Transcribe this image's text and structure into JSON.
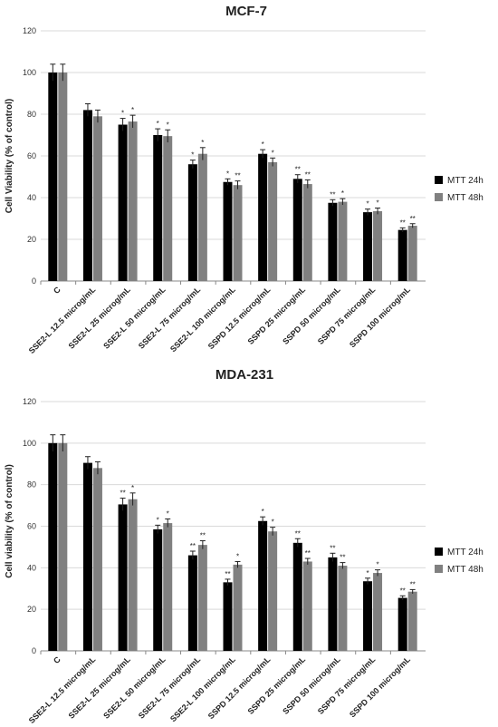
{
  "chart_data": [
    {
      "type": "bar",
      "title": "MCF-7",
      "ylabel": "Cell Viability (% of control)",
      "ylim": [
        0,
        120
      ],
      "yticks": [
        0,
        20,
        40,
        60,
        80,
        100,
        120
      ],
      "grid": true,
      "legend_position": "right",
      "categories": [
        "C",
        "SSE2-L 12.5 microg/mL",
        "SSE2-L 25 microg/mL",
        "SSE2-L 50 microg/mL",
        "SSE2-L 75 microg/mL",
        "SSE2-L 100 microg/mL",
        "SSPD 12.5 microg/mL",
        "SSPD 25 microg/mL",
        "SSPD 50 microg/mL",
        "SSPD 75 microg/mL",
        "SSPD 100 microg/mL"
      ],
      "series": [
        {
          "name": "MTT 24h",
          "color": "#000000",
          "values": [
            100,
            82,
            75,
            70,
            56,
            47.5,
            61,
            49,
            37.5,
            33,
            24.5
          ],
          "errors": [
            4,
            3,
            3,
            3,
            2,
            1.5,
            2,
            2,
            1.5,
            1.5,
            1
          ],
          "significance": [
            "",
            "",
            "*",
            "*",
            "*",
            "*",
            "*",
            "**",
            "**",
            "*",
            "**"
          ]
        },
        {
          "name": "MTT 48h",
          "color": "#808080",
          "values": [
            100,
            79,
            76.5,
            69.5,
            61,
            46,
            57,
            46.5,
            38,
            33.5,
            26.5
          ],
          "errors": [
            4,
            3,
            3,
            3,
            3,
            2,
            2,
            2,
            1.5,
            1.5,
            1
          ],
          "significance": [
            "",
            "",
            "*",
            "*",
            "*",
            "**",
            "*",
            "**",
            "*",
            "*",
            "**"
          ]
        }
      ]
    },
    {
      "type": "bar",
      "title": "MDA-231",
      "ylabel": "Cell viability (% of control)",
      "ylim": [
        0,
        120
      ],
      "yticks": [
        0,
        20,
        40,
        60,
        80,
        100,
        120
      ],
      "grid": true,
      "legend_position": "right",
      "categories": [
        "C",
        "SSE2-L 12.5 microg/mL",
        "SSE2-L 25 microg/mL",
        "SSE2-L 50 microg/mL",
        "SSE2-L 75 microg/mL",
        "SSE2-L 100 microg/mL",
        "SSPD 12.5 microg/mL",
        "SSPD 25 microg/mL",
        "SSPD 50 microg/mL",
        "SSPD 75 microg/mL",
        "SSPD 100 microg/mL"
      ],
      "series": [
        {
          "name": "MTT 24h",
          "color": "#000000",
          "values": [
            100,
            90.5,
            70.5,
            58.5,
            46,
            33,
            62.5,
            52,
            45,
            33.5,
            25.5
          ],
          "errors": [
            4,
            3,
            3,
            2,
            2,
            1.5,
            2,
            2,
            2,
            1.5,
            1
          ],
          "significance": [
            "",
            "",
            "**",
            "*",
            "**",
            "**",
            "*",
            "**",
            "**",
            "*",
            "**"
          ]
        },
        {
          "name": "MTT 48h",
          "color": "#808080",
          "values": [
            100,
            88,
            73,
            61.5,
            51,
            41.5,
            57.5,
            43,
            41,
            37.5,
            28.5
          ],
          "errors": [
            4,
            3,
            3,
            2,
            2,
            1.5,
            2,
            1.5,
            1.5,
            1.5,
            1
          ],
          "significance": [
            "",
            "",
            "*",
            "*",
            "**",
            "*",
            "*",
            "**",
            "**",
            "*",
            "**"
          ]
        }
      ]
    }
  ]
}
